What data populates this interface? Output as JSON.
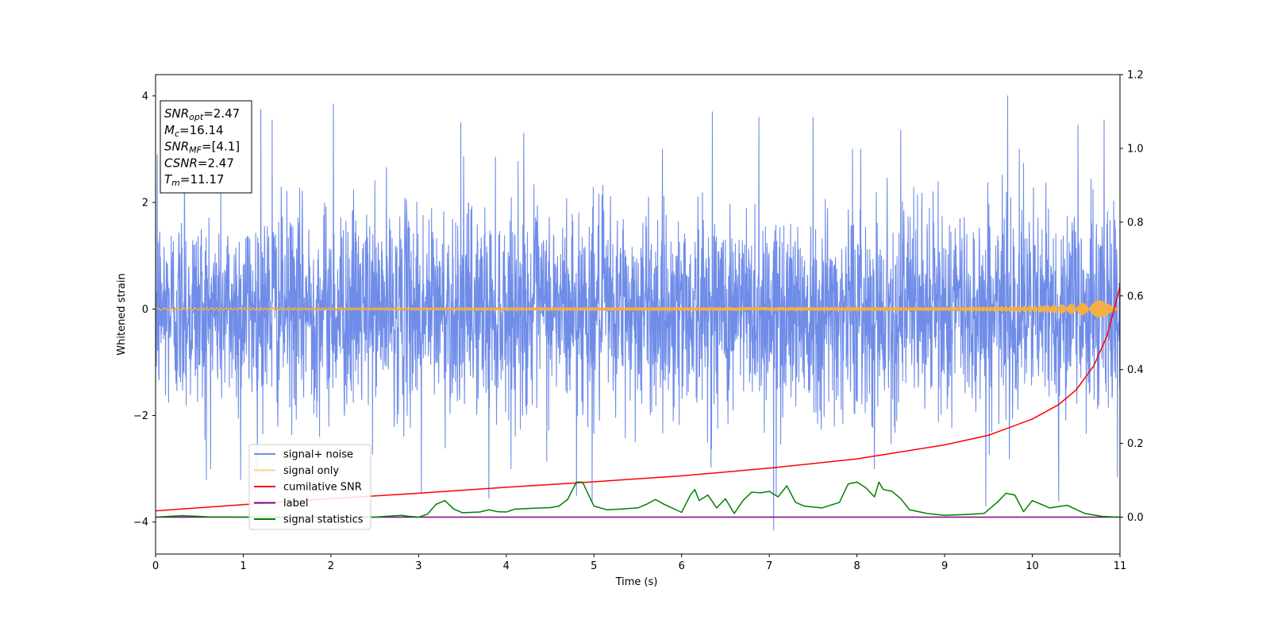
{
  "chart_data": {
    "type": "line",
    "xlabel": "Time (s)",
    "ylabel": "Whitened strain",
    "xlim": [
      0,
      11
    ],
    "ylim": [
      -4.6,
      4.4
    ],
    "y2lim": [
      -0.1,
      1.2
    ],
    "x_ticks": [
      "0",
      "1",
      "2",
      "3",
      "4",
      "5",
      "6",
      "7",
      "8",
      "9",
      "10",
      "11"
    ],
    "y_ticks": [
      "4",
      "2",
      "0",
      "−2",
      "−4"
    ],
    "y2_ticks": [
      "1.2",
      "1.0",
      "0.8",
      "0.6",
      "0.4",
      "0.2",
      "0.0"
    ],
    "grid": false,
    "legend_position": "lower-left",
    "annotations": [
      {
        "base": "SNR",
        "sub": "opt",
        "value": "=2.47"
      },
      {
        "base": "M",
        "sub": "c",
        "value": "=16.14"
      },
      {
        "base": "SNR",
        "sub": "MF",
        "value": "=[4.1]"
      },
      {
        "base": "CSNR",
        "sub": "",
        "value": "=2.47"
      },
      {
        "base": "T",
        "sub": "m",
        "value": "=11.17"
      }
    ],
    "series": [
      {
        "name": "signal+ noise",
        "color": "#6f8ce8",
        "axis": "left",
        "kind": "noise",
        "std": 0.95,
        "spike_peaks": [
          {
            "x": 0.02,
            "y": 2.9
          },
          {
            "x": 0.33,
            "y": 3.6
          },
          {
            "x": 0.58,
            "y": -3.2
          },
          {
            "x": 0.97,
            "y": -3.2
          },
          {
            "x": 1.2,
            "y": 3.75
          },
          {
            "x": 1.33,
            "y": 3.55
          },
          {
            "x": 2.03,
            "y": 3.85
          },
          {
            "x": 3.03,
            "y": -3.45
          },
          {
            "x": 3.48,
            "y": 3.5
          },
          {
            "x": 3.8,
            "y": -3.55
          },
          {
            "x": 4.2,
            "y": 3.3
          },
          {
            "x": 4.8,
            "y": -3.5
          },
          {
            "x": 4.98,
            "y": -3.6
          },
          {
            "x": 6.35,
            "y": 3.7
          },
          {
            "x": 6.88,
            "y": 3.6
          },
          {
            "x": 7.05,
            "y": -4.15
          },
          {
            "x": 7.08,
            "y": -3.5
          },
          {
            "x": 7.5,
            "y": 3.6
          },
          {
            "x": 7.95,
            "y": 3.0
          },
          {
            "x": 8.5,
            "y": 3.35
          },
          {
            "x": 9.47,
            "y": -3.7
          },
          {
            "x": 9.72,
            "y": 4.0
          },
          {
            "x": 9.85,
            "y": 3.0
          },
          {
            "x": 10.3,
            "y": -3.6
          },
          {
            "x": 10.52,
            "y": 3.45
          },
          {
            "x": 10.82,
            "y": 3.55
          },
          {
            "x": 10.97,
            "y": -3.15
          }
        ]
      },
      {
        "name": "signal only",
        "color": "#f5b041",
        "axis": "left",
        "kind": "chirp",
        "x": [
          0,
          9.0,
          10.0,
          10.5,
          10.8,
          11.0
        ],
        "amplitude": [
          0.02,
          0.03,
          0.05,
          0.09,
          0.16,
          0.25
        ]
      },
      {
        "name": "cumilative SNR",
        "color": "#ff0000",
        "axis": "right",
        "x": [
          0,
          1,
          2,
          3,
          4,
          5,
          6,
          7,
          8,
          9,
          9.5,
          10,
          10.3,
          10.5,
          10.7,
          10.85,
          11
        ],
        "values": [
          0.017,
          0.034,
          0.05,
          0.065,
          0.081,
          0.096,
          0.112,
          0.133,
          0.158,
          0.196,
          0.222,
          0.266,
          0.305,
          0.345,
          0.41,
          0.49,
          0.625
        ]
      },
      {
        "name": "label",
        "color": "#800080",
        "axis": "right",
        "x": [
          0,
          11
        ],
        "values": [
          0.0,
          0.0
        ]
      },
      {
        "name": "signal statistics",
        "color": "#008000",
        "axis": "right",
        "x": [
          0,
          0.3,
          0.6,
          1.0,
          1.5,
          2.0,
          2.5,
          2.8,
          2.9,
          3.0,
          3.1,
          3.2,
          3.3,
          3.4,
          3.5,
          3.6,
          3.7,
          3.8,
          3.9,
          4.0,
          4.1,
          4.3,
          4.5,
          4.6,
          4.7,
          4.8,
          4.87,
          5.0,
          5.15,
          5.3,
          5.5,
          5.6,
          5.7,
          5.8,
          6.0,
          6.1,
          6.15,
          6.2,
          6.3,
          6.4,
          6.5,
          6.6,
          6.7,
          6.8,
          6.9,
          7.0,
          7.1,
          7.2,
          7.3,
          7.4,
          7.6,
          7.8,
          7.9,
          8.0,
          8.1,
          8.2,
          8.25,
          8.3,
          8.4,
          8.5,
          8.6,
          8.8,
          9.0,
          9.3,
          9.45,
          9.6,
          9.7,
          9.8,
          9.9,
          10.0,
          10.2,
          10.4,
          10.6,
          10.8,
          11.0
        ],
        "values": [
          0.0,
          0.004,
          0.001,
          0.0,
          0.001,
          0.001,
          0.0,
          0.005,
          0.002,
          0.0,
          0.008,
          0.035,
          0.045,
          0.022,
          0.012,
          0.013,
          0.014,
          0.02,
          0.015,
          0.014,
          0.022,
          0.024,
          0.026,
          0.03,
          0.048,
          0.095,
          0.095,
          0.03,
          0.02,
          0.022,
          0.025,
          0.035,
          0.048,
          0.035,
          0.013,
          0.06,
          0.075,
          0.045,
          0.06,
          0.025,
          0.05,
          0.01,
          0.045,
          0.068,
          0.066,
          0.07,
          0.055,
          0.085,
          0.04,
          0.03,
          0.025,
          0.04,
          0.09,
          0.095,
          0.08,
          0.055,
          0.095,
          0.075,
          0.07,
          0.05,
          0.02,
          0.01,
          0.005,
          0.008,
          0.01,
          0.04,
          0.065,
          0.06,
          0.015,
          0.045,
          0.025,
          0.032,
          0.01,
          0.002,
          0.0
        ]
      }
    ]
  }
}
